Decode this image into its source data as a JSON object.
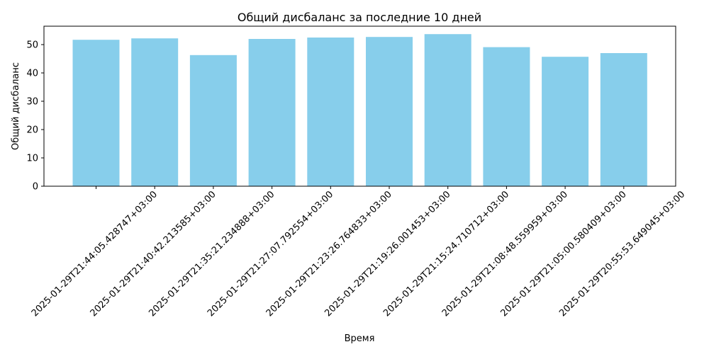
{
  "chart_data": {
    "type": "bar",
    "title": "Общий дисбаланс за последние 10 дней",
    "xlabel": "Время",
    "ylabel": "Общий дисбаланс",
    "ylim": [
      0,
      56.5
    ],
    "yticks": [
      0,
      10,
      20,
      30,
      40,
      50
    ],
    "categories": [
      "2025-01-29T21:44:05.428747+03:00",
      "2025-01-29T21:40:42.213585+03:00",
      "2025-01-29T21:35:21.234888+03:00",
      "2025-01-29T21:27:07.792554+03:00",
      "2025-01-29T21:23:26.764833+03:00",
      "2025-01-29T21:19:26.001453+03:00",
      "2025-01-29T21:15:24.710712+03:00",
      "2025-01-29T21:08:48.559959+03:00",
      "2025-01-29T21:05:00.580409+03:00",
      "2025-01-29T20:55:53.649045+03:00"
    ],
    "values": [
      51.7,
      52.2,
      46.3,
      52.0,
      52.5,
      52.7,
      53.7,
      49.1,
      45.7,
      47.0
    ],
    "bar_color": "#87ceeb",
    "grid": false,
    "tick_offset": "shifted"
  }
}
